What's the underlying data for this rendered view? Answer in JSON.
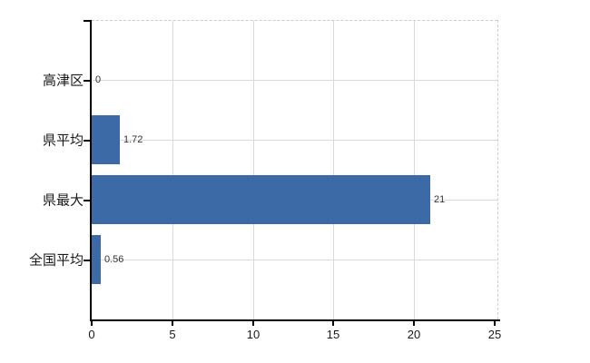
{
  "chart_data": {
    "type": "bar",
    "orientation": "horizontal",
    "title": "",
    "xlabel": "",
    "ylabel": "",
    "categories": [
      "高津区",
      "県平均",
      "県最大",
      "全国平均"
    ],
    "values": [
      0,
      1.72,
      21,
      0.56
    ],
    "value_labels": [
      "0",
      "1.72",
      "21",
      "0.56"
    ],
    "x_ticks": [
      0,
      5,
      10,
      15,
      20,
      25
    ],
    "x_tick_labels": [
      "0",
      "5",
      "10",
      "15",
      "20",
      "25"
    ],
    "xlim": [
      0,
      25
    ],
    "grid": true,
    "legend": false,
    "frame": "solid black left and bottom axes, dashed light gray top and right borders",
    "colors": {
      "bar": "#3b6aa6",
      "grid": "#d9d9d9",
      "frame_dashed": "#cccccc",
      "axis": "#000000",
      "category_text": "#1a1a1a",
      "value_text": "#333333"
    }
  }
}
